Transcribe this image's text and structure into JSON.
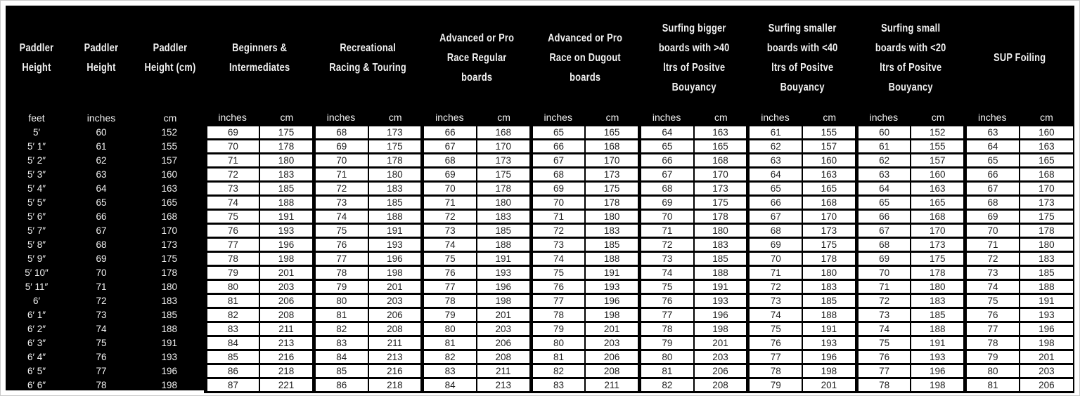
{
  "colors": {
    "table_background": "#000000",
    "header_text": "#f2f2f2",
    "cell_background": "#ffffff",
    "cell_text": "#1c1c1c",
    "cell_border": "#000000"
  },
  "chart_data": {
    "type": "table",
    "height_columns": [
      {
        "title": "Paddler\nHeight",
        "unit": "feet"
      },
      {
        "title": "Paddler\nHeight",
        "unit": "inches"
      },
      {
        "title": "Paddler\nHeight (cm)",
        "unit": "cm"
      }
    ],
    "groups": [
      {
        "title": "Beginners &\nIntermediates",
        "units": [
          "inches",
          "cm"
        ]
      },
      {
        "title": "Recreational\nRacing & Touring",
        "units": [
          "inches",
          "cm"
        ]
      },
      {
        "title": "Advanced or Pro\nRace Regular\nboards",
        "units": [
          "inches",
          "cm"
        ]
      },
      {
        "title": "Advanced or Pro\nRace on Dugout\nboards",
        "units": [
          "inches",
          "cm"
        ]
      },
      {
        "title": "Surfing bigger\nboards with >40\nltrs of Positve\nBouyancy",
        "units": [
          "inches",
          "cm"
        ]
      },
      {
        "title": "Surfing smaller\nboards with <40\nltrs of Positve\nBouyancy",
        "units": [
          "inches",
          "cm"
        ]
      },
      {
        "title": "Surfing small\nboards with <20\nltrs of Positve\nBouyancy",
        "units": [
          "inches",
          "cm"
        ]
      },
      {
        "title": "SUP Foiling",
        "units": [
          "inches",
          "cm"
        ]
      }
    ],
    "rows": [
      {
        "feet": "5′",
        "inches": "60",
        "cm": "152",
        "cells": [
          "69",
          "175",
          "68",
          "173",
          "66",
          "168",
          "65",
          "165",
          "64",
          "163",
          "61",
          "155",
          "60",
          "152",
          "63",
          "160"
        ]
      },
      {
        "feet": "5′ 1″",
        "inches": "61",
        "cm": "155",
        "cells": [
          "70",
          "178",
          "69",
          "175",
          "67",
          "170",
          "66",
          "168",
          "65",
          "165",
          "62",
          "157",
          "61",
          "155",
          "64",
          "163"
        ]
      },
      {
        "feet": "5′ 2″",
        "inches": "62",
        "cm": "157",
        "cells": [
          "71",
          "180",
          "70",
          "178",
          "68",
          "173",
          "67",
          "170",
          "66",
          "168",
          "63",
          "160",
          "62",
          "157",
          "65",
          "165"
        ]
      },
      {
        "feet": "5′ 3″",
        "inches": "63",
        "cm": "160",
        "cells": [
          "72",
          "183",
          "71",
          "180",
          "69",
          "175",
          "68",
          "173",
          "67",
          "170",
          "64",
          "163",
          "63",
          "160",
          "66",
          "168"
        ]
      },
      {
        "feet": "5′ 4″",
        "inches": "64",
        "cm": "163",
        "cells": [
          "73",
          "185",
          "72",
          "183",
          "70",
          "178",
          "69",
          "175",
          "68",
          "173",
          "65",
          "165",
          "64",
          "163",
          "67",
          "170"
        ]
      },
      {
        "feet": "5′ 5″",
        "inches": "65",
        "cm": "165",
        "cells": [
          "74",
          "188",
          "73",
          "185",
          "71",
          "180",
          "70",
          "178",
          "69",
          "175",
          "66",
          "168",
          "65",
          "165",
          "68",
          "173"
        ]
      },
      {
        "feet": "5′ 6″",
        "inches": "66",
        "cm": "168",
        "cells": [
          "75",
          "191",
          "74",
          "188",
          "72",
          "183",
          "71",
          "180",
          "70",
          "178",
          "67",
          "170",
          "66",
          "168",
          "69",
          "175"
        ]
      },
      {
        "feet": "5′ 7″",
        "inches": "67",
        "cm": "170",
        "cells": [
          "76",
          "193",
          "75",
          "191",
          "73",
          "185",
          "72",
          "183",
          "71",
          "180",
          "68",
          "173",
          "67",
          "170",
          "70",
          "178"
        ]
      },
      {
        "feet": "5′ 8″",
        "inches": "68",
        "cm": "173",
        "cells": [
          "77",
          "196",
          "76",
          "193",
          "74",
          "188",
          "73",
          "185",
          "72",
          "183",
          "69",
          "175",
          "68",
          "173",
          "71",
          "180"
        ]
      },
      {
        "feet": "5′ 9″",
        "inches": "69",
        "cm": "175",
        "cells": [
          "78",
          "198",
          "77",
          "196",
          "75",
          "191",
          "74",
          "188",
          "73",
          "185",
          "70",
          "178",
          "69",
          "175",
          "72",
          "183"
        ]
      },
      {
        "feet": "5′ 10″",
        "inches": "70",
        "cm": "178",
        "cells": [
          "79",
          "201",
          "78",
          "198",
          "76",
          "193",
          "75",
          "191",
          "74",
          "188",
          "71",
          "180",
          "70",
          "178",
          "73",
          "185"
        ]
      },
      {
        "feet": "5′ 11″",
        "inches": "71",
        "cm": "180",
        "cells": [
          "80",
          "203",
          "79",
          "201",
          "77",
          "196",
          "76",
          "193",
          "75",
          "191",
          "72",
          "183",
          "71",
          "180",
          "74",
          "188"
        ]
      },
      {
        "feet": "6′",
        "inches": "72",
        "cm": "183",
        "cells": [
          "81",
          "206",
          "80",
          "203",
          "78",
          "198",
          "77",
          "196",
          "76",
          "193",
          "73",
          "185",
          "72",
          "183",
          "75",
          "191"
        ]
      },
      {
        "feet": "6′ 1″",
        "inches": "73",
        "cm": "185",
        "cells": [
          "82",
          "208",
          "81",
          "206",
          "79",
          "201",
          "78",
          "198",
          "77",
          "196",
          "74",
          "188",
          "73",
          "185",
          "76",
          "193"
        ]
      },
      {
        "feet": "6′ 2″",
        "inches": "74",
        "cm": "188",
        "cells": [
          "83",
          "211",
          "82",
          "208",
          "80",
          "203",
          "79",
          "201",
          "78",
          "198",
          "75",
          "191",
          "74",
          "188",
          "77",
          "196"
        ]
      },
      {
        "feet": "6′ 3″",
        "inches": "75",
        "cm": "191",
        "cells": [
          "84",
          "213",
          "83",
          "211",
          "81",
          "206",
          "80",
          "203",
          "79",
          "201",
          "76",
          "193",
          "75",
          "191",
          "78",
          "198"
        ]
      },
      {
        "feet": "6′ 4″",
        "inches": "76",
        "cm": "193",
        "cells": [
          "85",
          "216",
          "84",
          "213",
          "82",
          "208",
          "81",
          "206",
          "80",
          "203",
          "77",
          "196",
          "76",
          "193",
          "79",
          "201"
        ]
      },
      {
        "feet": "6′ 5″",
        "inches": "77",
        "cm": "196",
        "cells": [
          "86",
          "218",
          "85",
          "216",
          "83",
          "211",
          "82",
          "208",
          "81",
          "206",
          "78",
          "198",
          "77",
          "196",
          "80",
          "203"
        ]
      },
      {
        "feet": "6′ 6″",
        "inches": "78",
        "cm": "198",
        "cells": [
          "87",
          "221",
          "86",
          "218",
          "84",
          "213",
          "83",
          "211",
          "82",
          "208",
          "79",
          "201",
          "78",
          "198",
          "81",
          "206"
        ]
      }
    ]
  }
}
